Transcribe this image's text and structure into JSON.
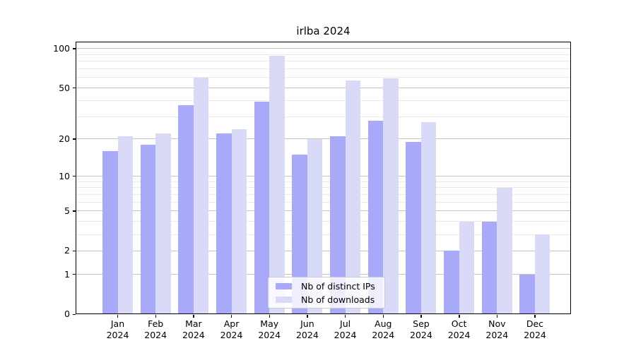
{
  "title": "irlba 2024",
  "legend": {
    "items": [
      {
        "label": "Nb of distinct IPs",
        "color": "#a9a9f9"
      },
      {
        "label": "Nb of downloads",
        "color": "#d9d9f8"
      }
    ],
    "position": "lower center"
  },
  "chart_data": {
    "type": "bar",
    "title": "irlba 2024",
    "categories": [
      "Jan 2024",
      "Feb 2024",
      "Mar 2024",
      "Apr 2024",
      "May 2024",
      "Jun 2024",
      "Jul 2024",
      "Aug 2024",
      "Sep 2024",
      "Oct 2024",
      "Nov 2024",
      "Dec 2024"
    ],
    "series": [
      {
        "name": "Nb of distinct IPs",
        "color": "#a9a9f9",
        "values": [
          16,
          18,
          37,
          22,
          39,
          15,
          21,
          28,
          19,
          2,
          4,
          1
        ]
      },
      {
        "name": "Nb of downloads",
        "color": "#d9d9f8",
        "values": [
          21,
          22,
          60,
          24,
          88,
          20,
          57,
          59,
          27,
          4,
          8,
          3
        ]
      }
    ],
    "xlabel": "",
    "ylabel": "",
    "yscale": "log1p",
    "ylim": [
      0,
      112
    ],
    "y_major_ticks": [
      0,
      1,
      2,
      5,
      10,
      20,
      50,
      100
    ],
    "y_minor_ticks": [
      3,
      4,
      6,
      7,
      8,
      9,
      30,
      40,
      60,
      70,
      80,
      90
    ],
    "grid": "on",
    "grid_major_color": "#c3c3c3",
    "grid_minor_color": "#e9e9e9",
    "legend_position": "lower center"
  }
}
